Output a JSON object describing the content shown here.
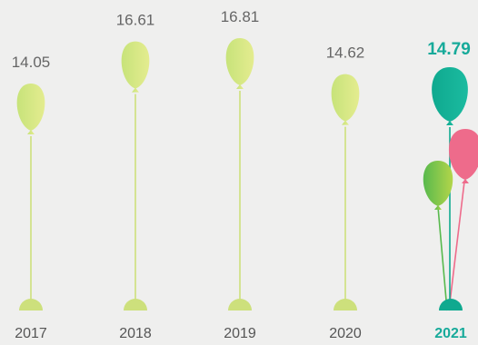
{
  "chart_data": {
    "type": "bar",
    "style": "balloon",
    "categories": [
      "2017",
      "2018",
      "2019",
      "2020",
      "2021"
    ],
    "values": [
      14.05,
      16.61,
      16.81,
      14.62,
      14.79
    ],
    "value_labels": [
      "14.05",
      "16.61",
      "16.81",
      "14.62",
      "14.79"
    ],
    "highlight_index": 4,
    "title": "",
    "xlabel": "",
    "ylabel": "",
    "grid": false,
    "legend": "none"
  },
  "colors": {
    "background": "#efefee",
    "balloon_start": "#c7e37a",
    "balloon_end": "#e4ec8f",
    "string": "#cde07c",
    "highlight_teal_start": "#0fa98f",
    "highlight_teal_end": "#1bbba0",
    "highlight_pink": "#ee6b8b",
    "highlight_green_start": "#58b94d",
    "highlight_green_end": "#b3d54a",
    "highlight_text": "#17aa9a"
  }
}
